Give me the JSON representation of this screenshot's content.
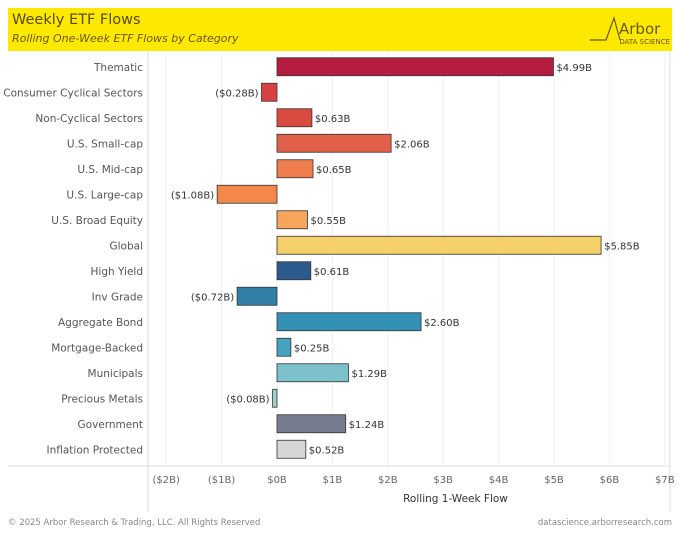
{
  "header": {
    "title": "Weekly ETF Flows",
    "subtitle": "Rolling One-Week ETF Flows by Category",
    "logo_name": "Arbor",
    "logo_sub": "DATA SCIENCE",
    "background": "#fde800"
  },
  "chart_data": {
    "type": "bar",
    "orientation": "horizontal",
    "title": "Weekly ETF Flows",
    "subtitle": "Rolling One-Week ETF Flows by Category",
    "xlabel": "Rolling 1-Week Flow",
    "ylabel": "",
    "xlim": [
      -2.3,
      7.0
    ],
    "grid": true,
    "x_ticks": [
      -2,
      -1,
      0,
      1,
      2,
      3,
      4,
      5,
      6,
      7
    ],
    "x_tick_labels": [
      "($2B)",
      "($1B)",
      "$0B",
      "$1B",
      "$2B",
      "$3B",
      "$4B",
      "$5B",
      "$6B",
      "$7B"
    ],
    "categories": [
      "Thematic",
      "Consumer Cyclical Sectors",
      "Non-Cyclical Sectors",
      "U.S. Small-cap",
      "U.S. Mid-cap",
      "U.S. Large-cap",
      "U.S. Broad Equity",
      "Global",
      "High Yield",
      "Inv Grade",
      "Aggregate Bond",
      "Mortgage-Backed",
      "Municipals",
      "Precious Metals",
      "Government",
      "Inflation Protected"
    ],
    "values": [
      4.99,
      -0.28,
      0.63,
      2.06,
      0.65,
      -1.08,
      0.55,
      5.85,
      0.61,
      -0.72,
      2.6,
      0.25,
      1.29,
      -0.08,
      1.24,
      0.52
    ],
    "value_labels": [
      "$4.99B",
      "($0.28B)",
      "$0.63B",
      "$2.06B",
      "$0.65B",
      "($1.08B)",
      "$0.55B",
      "$5.85B",
      "$0.61B",
      "($0.72B)",
      "$2.60B",
      "$0.25B",
      "$1.29B",
      "($0.08B)",
      "$1.24B",
      "$0.52B"
    ],
    "colors": [
      "#b51d40",
      "#d84244",
      "#d94a40",
      "#e0604a",
      "#ef7d4e",
      "#f4874a",
      "#f6a55a",
      "#f3d068",
      "#2d5a8c",
      "#337ea6",
      "#3391b5",
      "#45a3c0",
      "#7cc1cc",
      "#9ad1c8",
      "#757d8e",
      "#d6d6d6"
    ]
  },
  "footer": {
    "copyright": "© 2025 Arbor Research & Trading, LLC. All Rights Reserved",
    "website": "datascience.arborresearch.com"
  }
}
